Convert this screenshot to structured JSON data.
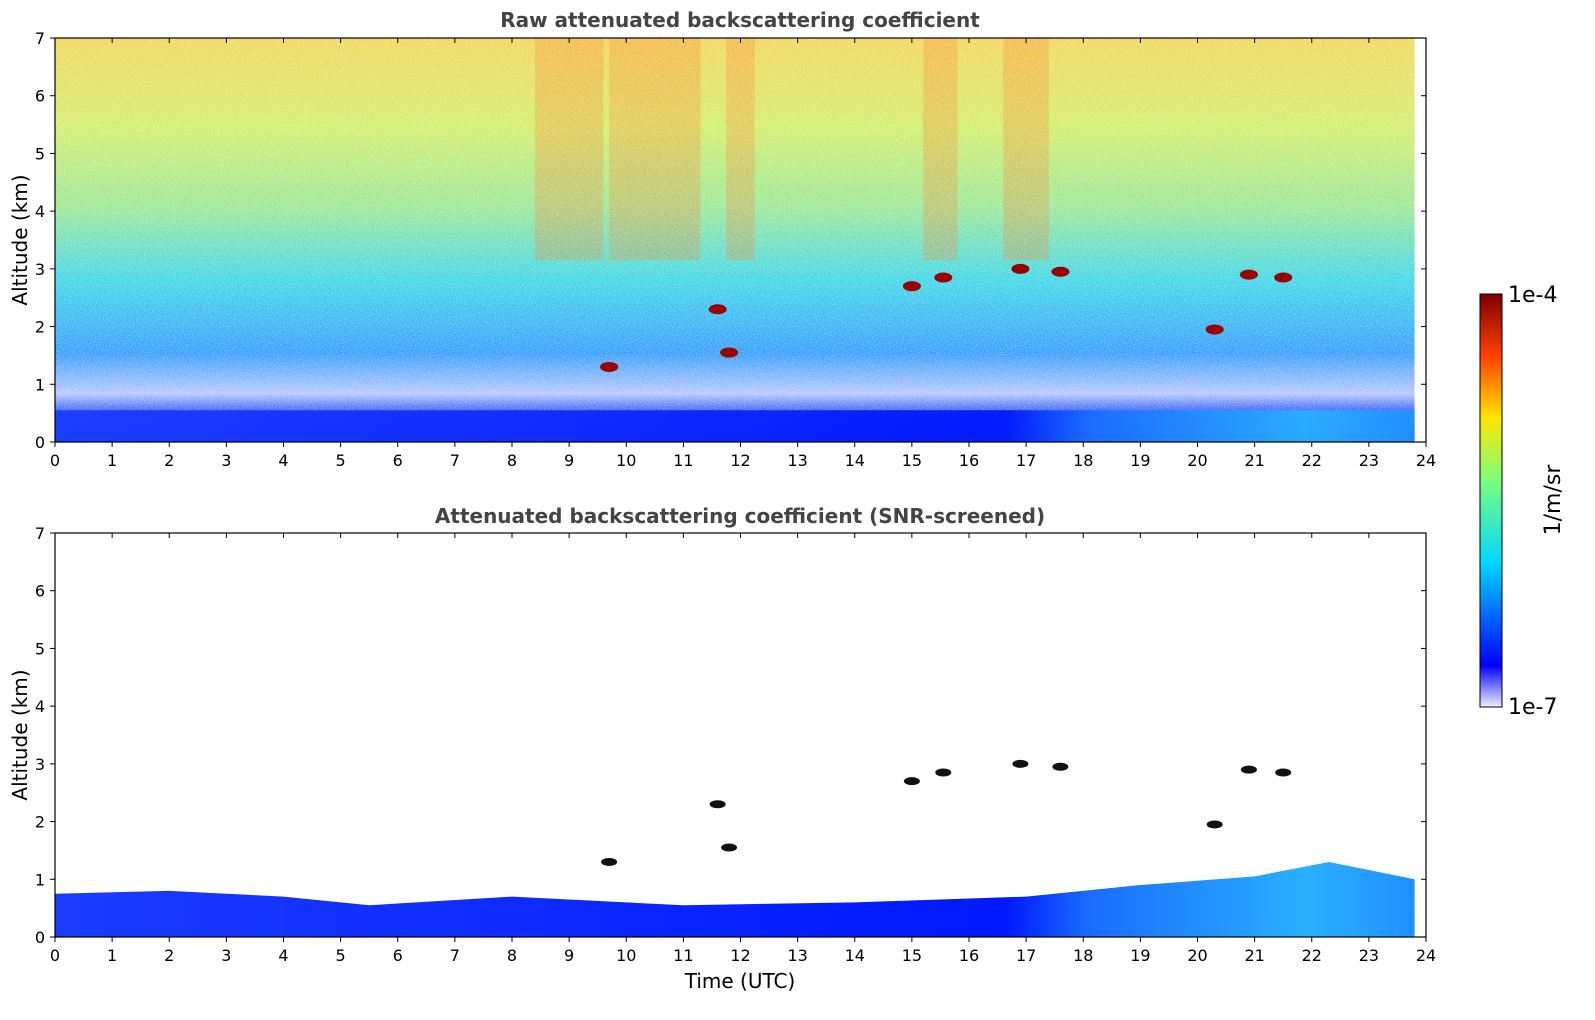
{
  "chart_data": [
    {
      "type": "heatmap",
      "title": "Raw attenuated backscattering coefficient",
      "ylabel": "Altitude (km)",
      "xlabel": "",
      "xlim": [
        0,
        24
      ],
      "ylim": [
        0,
        7
      ],
      "xticks": [
        "0",
        "1",
        "2",
        "3",
        "4",
        "5",
        "6",
        "7",
        "8",
        "9",
        "10",
        "11",
        "12",
        "13",
        "14",
        "15",
        "16",
        "17",
        "18",
        "19",
        "20",
        "21",
        "22",
        "23",
        "24"
      ],
      "yticks": [
        "0",
        "1",
        "2",
        "3",
        "4",
        "5",
        "6",
        "7"
      ],
      "grid": false,
      "data_end_time": 23.8,
      "cloud_features": [
        {
          "t": 9.7,
          "alt": 1.3
        },
        {
          "t": 11.6,
          "alt": 2.3
        },
        {
          "t": 11.8,
          "alt": 1.55
        },
        {
          "t": 15.0,
          "alt": 2.7
        },
        {
          "t": 15.55,
          "alt": 2.85
        },
        {
          "t": 16.9,
          "alt": 3.0
        },
        {
          "t": 17.6,
          "alt": 2.95
        },
        {
          "t": 20.3,
          "alt": 1.95
        },
        {
          "t": 20.9,
          "alt": 2.9
        },
        {
          "t": 21.5,
          "alt": 2.85
        }
      ]
    },
    {
      "type": "heatmap",
      "title": "Attenuated backscattering coefficient (SNR-screened)",
      "ylabel": "Altitude (km)",
      "xlabel": "Time (UTC)",
      "xlim": [
        0,
        24
      ],
      "ylim": [
        0,
        7
      ],
      "xticks": [
        "0",
        "1",
        "2",
        "3",
        "4",
        "5",
        "6",
        "7",
        "8",
        "9",
        "10",
        "11",
        "12",
        "13",
        "14",
        "15",
        "16",
        "17",
        "18",
        "19",
        "20",
        "21",
        "22",
        "23",
        "24"
      ],
      "yticks": [
        "0",
        "1",
        "2",
        "3",
        "4",
        "5",
        "6",
        "7"
      ],
      "grid": false,
      "data_end_time": 23.8,
      "boundary_layer_top_km": [
        {
          "t": 0,
          "alt": 0.75
        },
        {
          "t": 2,
          "alt": 0.8
        },
        {
          "t": 4,
          "alt": 0.7
        },
        {
          "t": 5.5,
          "alt": 0.55
        },
        {
          "t": 8,
          "alt": 0.7
        },
        {
          "t": 11,
          "alt": 0.55
        },
        {
          "t": 14,
          "alt": 0.6
        },
        {
          "t": 17,
          "alt": 0.7
        },
        {
          "t": 19,
          "alt": 0.9
        },
        {
          "t": 21,
          "alt": 1.05
        },
        {
          "t": 22.3,
          "alt": 1.3
        },
        {
          "t": 23.8,
          "alt": 1.0
        }
      ],
      "cloud_features": [
        {
          "t": 9.7,
          "alt": 1.3
        },
        {
          "t": 11.6,
          "alt": 2.3
        },
        {
          "t": 11.8,
          "alt": 1.55
        },
        {
          "t": 15.0,
          "alt": 2.7
        },
        {
          "t": 15.55,
          "alt": 2.85
        },
        {
          "t": 16.9,
          "alt": 3.0
        },
        {
          "t": 17.6,
          "alt": 2.95
        },
        {
          "t": 20.3,
          "alt": 1.95
        },
        {
          "t": 20.9,
          "alt": 2.9
        },
        {
          "t": 21.5,
          "alt": 2.85
        }
      ]
    }
  ],
  "colorbar": {
    "max_label": "1e-4",
    "min_label": "1e-7",
    "label": "1/m/sr",
    "colormap": [
      "#eeeeff",
      "#0000ff",
      "#00d8ff",
      "#7cff7a",
      "#ffe600",
      "#ff4000",
      "#7f0000"
    ]
  }
}
